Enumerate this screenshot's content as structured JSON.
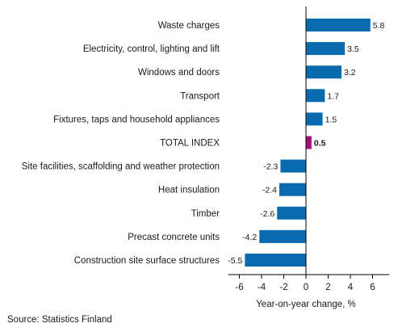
{
  "chart_data": {
    "type": "bar",
    "orientation": "horizontal",
    "categories": [
      "Waste charges",
      "Electricity, control, lighting and lift",
      "Windows and doors",
      "Transport",
      "Fixtures, taps and household appliances",
      "TOTAL INDEX",
      "Site facilities, scaffolding and weather protection",
      "Heat insulation",
      "Timber",
      "Precast concrete units",
      "Construction site surface structures"
    ],
    "values": [
      5.8,
      3.5,
      3.2,
      1.7,
      1.5,
      0.5,
      -2.3,
      -2.4,
      -2.6,
      -4.2,
      -5.5
    ],
    "value_labels": [
      "5.8",
      "3.5",
      "3.2",
      "1.7",
      "1.5",
      "0.5",
      "-2.3",
      "-2.4",
      "-2.6",
      "-4.2",
      "-5.5"
    ],
    "highlight": "TOTAL INDEX",
    "colors": {
      "bar": "#0a6aae",
      "highlight": "#a3107a",
      "axis": "#000000"
    },
    "xlabel": "Year-on-year change, %",
    "xlim": [
      -7,
      7.5
    ],
    "xticks": [
      -6,
      -4,
      -2,
      0,
      2,
      4,
      6
    ],
    "xtick_labels": [
      "-6",
      "-4",
      "-2",
      "0",
      "2",
      "4",
      "6"
    ],
    "grid": false,
    "legend": "none"
  },
  "source": "Source: Statistics Finland"
}
